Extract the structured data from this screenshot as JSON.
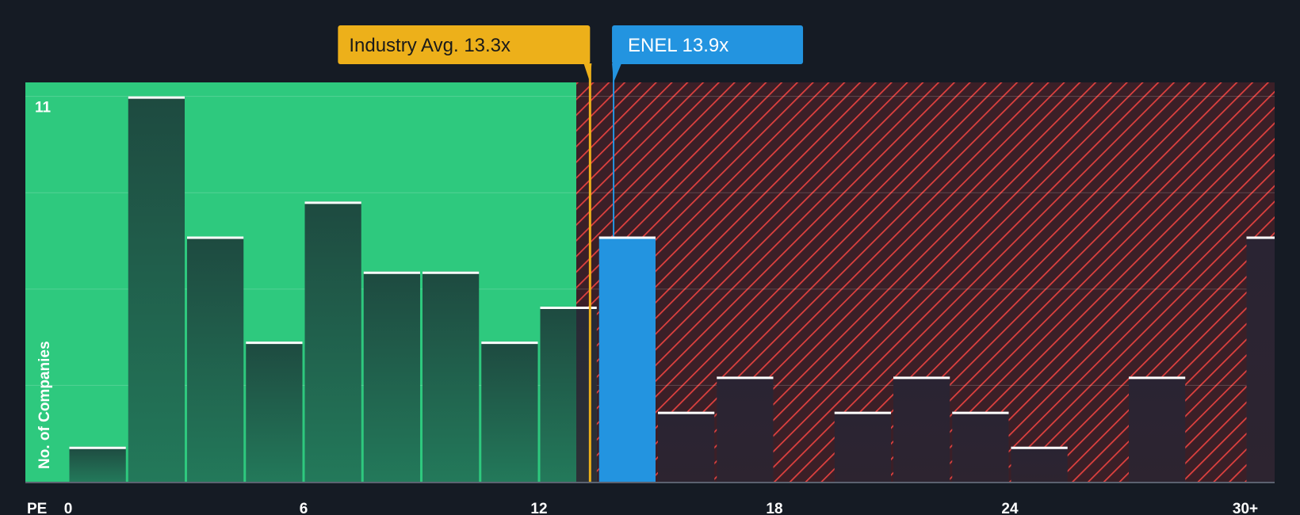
{
  "chart_data": {
    "type": "bar",
    "title": "",
    "xlabel": "PE",
    "ylabel": "No. of Companies",
    "ymax_label": "11",
    "ylim": [
      0,
      11.4
    ],
    "xlim": [
      0,
      30.8
    ],
    "bin_width": 1.5,
    "x_ticks": [
      {
        "value": 0,
        "label": "0"
      },
      {
        "value": 6,
        "label": "6"
      },
      {
        "value": 12,
        "label": "12"
      },
      {
        "value": 18,
        "label": "18"
      },
      {
        "value": 24,
        "label": "24"
      },
      {
        "value": 30,
        "label": "30+"
      }
    ],
    "gridlines": [
      0,
      2.75,
      5.5,
      8.25,
      11
    ],
    "bins": [
      {
        "start": 0,
        "value": 1
      },
      {
        "start": 1.5,
        "value": 11
      },
      {
        "start": 3,
        "value": 7
      },
      {
        "start": 4.5,
        "value": 4
      },
      {
        "start": 6,
        "value": 8
      },
      {
        "start": 7.5,
        "value": 6
      },
      {
        "start": 9,
        "value": 6
      },
      {
        "start": 10.5,
        "value": 4
      },
      {
        "start": 12,
        "value": 5
      },
      {
        "start": 13.5,
        "value": 7,
        "highlight": true
      },
      {
        "start": 15,
        "value": 2
      },
      {
        "start": 16.5,
        "value": 3
      },
      {
        "start": 19.5,
        "value": 2
      },
      {
        "start": 21,
        "value": 3
      },
      {
        "start": 22.5,
        "value": 2
      },
      {
        "start": 24,
        "value": 1
      },
      {
        "start": 27,
        "value": 3
      },
      {
        "start": 30,
        "value": 7
      }
    ],
    "industry_avg": {
      "value": 13.3,
      "label": "Industry Avg. 13.3x"
    },
    "company": {
      "value": 13.9,
      "label": "ENEL 13.9x"
    },
    "fair_zone_end": 12.95
  },
  "colors": {
    "background": "#151b24",
    "green_zone": "#2ec97e",
    "red_zone": "#3b1f27",
    "hatch": "#e0413f",
    "bar_in_green": "#1f4d3f",
    "bar_in_red": "#2a2531",
    "highlight_bar": "#2394e0",
    "industry_callout": "#edb01a",
    "company_callout": "#2394e0",
    "grid": "#5ad89b"
  }
}
